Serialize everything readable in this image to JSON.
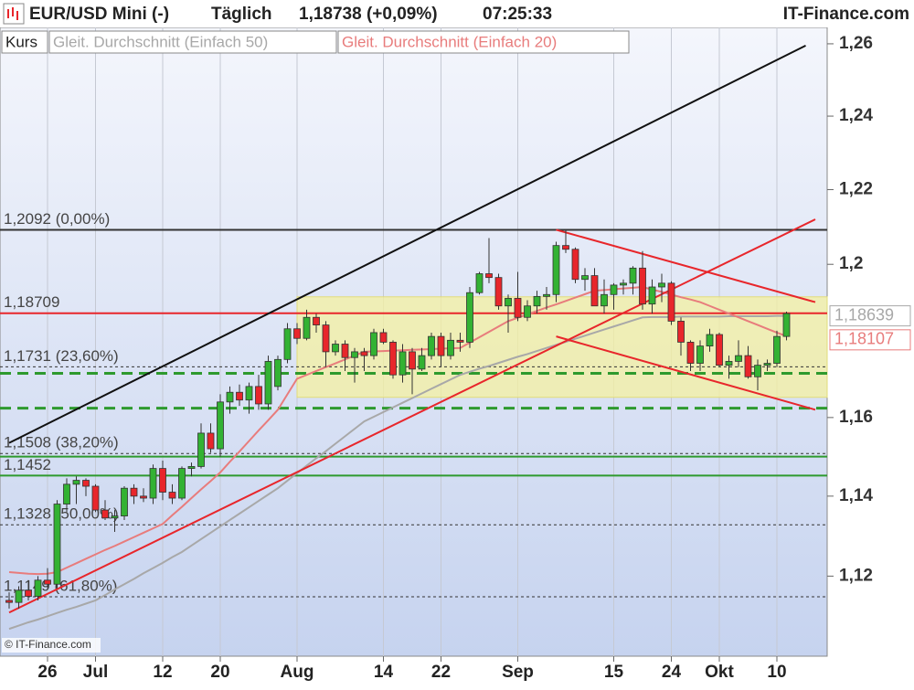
{
  "chart_data": {
    "type": "candlestick",
    "title": "EUR/USD Mini (-)",
    "interval": "Täglich",
    "last_price": "1,18738 (+0,09%)",
    "time": "07:25:33",
    "source": "IT-Finance.com",
    "copyright": "© IT-Finance.com",
    "price_name": "Kurs",
    "up_color": "#33b233",
    "down_color": "#e8262b",
    "log_scale": true,
    "ylim": [
      1.101,
      1.2633
    ],
    "yticks": [
      {
        "value": 1.12,
        "label": "1,12"
      },
      {
        "value": 1.14,
        "label": "1,14"
      },
      {
        "value": 1.16,
        "label": "1,16"
      },
      {
        "value": 1.2,
        "label": "1,2"
      },
      {
        "value": 1.22,
        "label": "1,22"
      },
      {
        "value": 1.24,
        "label": "1,24"
      },
      {
        "value": 1.26,
        "label": "1,26"
      }
    ],
    "categories": [
      null,
      null,
      null,
      null,
      "26",
      null,
      null,
      null,
      null,
      "Jul",
      null,
      null,
      null,
      null,
      null,
      null,
      "12",
      null,
      null,
      null,
      null,
      null,
      "20",
      null,
      null,
      null,
      null,
      null,
      null,
      null,
      "Aug",
      null,
      null,
      null,
      null,
      null,
      null,
      null,
      null,
      "14",
      null,
      null,
      null,
      null,
      null,
      "22",
      null,
      null,
      null,
      null,
      null,
      null,
      null,
      "Sep",
      null,
      null,
      null,
      null,
      null,
      null,
      null,
      null,
      null,
      "15",
      null,
      null,
      null,
      null,
      null,
      "24",
      null,
      null,
      null,
      null,
      "Okt",
      null,
      null,
      null,
      null,
      null,
      "10",
      null
    ],
    "open": [
      1.114,
      1.1135,
      1.1165,
      1.115,
      1.119,
      1.118,
      1.138,
      1.143,
      1.144,
      1.1425,
      1.1365,
      1.1345,
      1.135,
      1.142,
      1.14,
      1.1395,
      1.147,
      1.141,
      1.1395,
      1.147,
      1.1475,
      1.156,
      1.152,
      1.164,
      1.1665,
      1.1645,
      1.168,
      1.1635,
      1.168,
      1.175,
      1.183,
      1.1805,
      1.186,
      1.184,
      1.177,
      1.179,
      1.1755,
      1.177,
      1.176,
      1.182,
      1.1795,
      1.171,
      1.177,
      1.1725,
      1.176,
      1.181,
      1.176,
      1.18,
      1.1795,
      1.1925,
      1.1975,
      1.1965,
      1.189,
      1.191,
      1.186,
      1.189,
      1.1915,
      1.192,
      1.205,
      1.204,
      1.196,
      1.197,
      1.189,
      1.192,
      1.1945,
      1.195,
      1.199,
      1.1895,
      1.194,
      1.195,
      1.185,
      1.1795,
      1.174,
      1.1785,
      1.1815,
      1.1735,
      1.1745,
      1.176,
      1.1705,
      1.1735,
      1.174,
      1.181
    ],
    "high": [
      1.116,
      1.1175,
      1.119,
      1.12,
      1.122,
      1.139,
      1.1445,
      1.145,
      1.1445,
      1.143,
      1.139,
      1.1365,
      1.1425,
      1.143,
      1.142,
      1.148,
      1.149,
      1.143,
      1.1475,
      1.1485,
      1.1585,
      1.1585,
      1.166,
      1.168,
      1.1685,
      1.169,
      1.171,
      1.176,
      1.176,
      1.1845,
      1.1845,
      1.188,
      1.187,
      1.185,
      1.18,
      1.18,
      1.178,
      1.178,
      1.183,
      1.183,
      1.18,
      1.179,
      1.178,
      1.178,
      1.182,
      1.182,
      1.182,
      1.182,
      1.194,
      1.198,
      1.207,
      1.1975,
      1.192,
      1.198,
      1.1905,
      1.193,
      1.194,
      1.206,
      1.2092,
      1.2045,
      1.199,
      1.199,
      1.196,
      1.195,
      1.196,
      1.1995,
      1.2035,
      1.196,
      1.1975,
      1.1955,
      1.186,
      1.18,
      1.18,
      1.183,
      1.182,
      1.176,
      1.18,
      1.1785,
      1.175,
      1.175,
      1.1825,
      1.1875
    ],
    "low": [
      1.112,
      1.112,
      1.114,
      1.114,
      1.117,
      1.117,
      1.136,
      1.138,
      1.14,
      1.136,
      1.134,
      1.131,
      1.134,
      1.138,
      1.1385,
      1.138,
      1.139,
      1.138,
      1.139,
      1.145,
      1.147,
      1.151,
      1.15,
      1.161,
      1.163,
      1.161,
      1.162,
      1.162,
      1.167,
      1.174,
      1.179,
      1.18,
      1.182,
      1.173,
      1.176,
      1.172,
      1.169,
      1.172,
      1.175,
      1.179,
      1.17,
      1.169,
      1.166,
      1.172,
      1.175,
      1.173,
      1.175,
      1.177,
      1.178,
      1.192,
      1.195,
      1.188,
      1.182,
      1.185,
      1.185,
      1.187,
      1.188,
      1.19,
      1.203,
      1.195,
      1.193,
      1.189,
      1.187,
      1.188,
      1.192,
      1.192,
      1.188,
      1.187,
      1.19,
      1.184,
      1.176,
      1.172,
      1.172,
      1.177,
      1.173,
      1.17,
      1.173,
      1.17,
      1.167,
      1.172,
      1.173,
      1.18
    ],
    "close": [
      1.1135,
      1.1165,
      1.115,
      1.119,
      1.118,
      1.138,
      1.143,
      1.144,
      1.1425,
      1.1365,
      1.1345,
      1.135,
      1.142,
      1.14,
      1.1395,
      1.147,
      1.141,
      1.1395,
      1.147,
      1.1475,
      1.156,
      1.152,
      1.164,
      1.1665,
      1.1645,
      1.168,
      1.1635,
      1.1745,
      1.175,
      1.183,
      1.1805,
      1.186,
      1.184,
      1.177,
      1.179,
      1.1755,
      1.177,
      1.176,
      1.182,
      1.1795,
      1.171,
      1.177,
      1.1725,
      1.176,
      1.181,
      1.176,
      1.18,
      1.1795,
      1.1925,
      1.1975,
      1.1965,
      1.189,
      1.191,
      1.186,
      1.189,
      1.1915,
      1.192,
      1.205,
      1.204,
      1.196,
      1.197,
      1.189,
      1.192,
      1.1945,
      1.195,
      1.199,
      1.1895,
      1.194,
      1.195,
      1.185,
      1.1795,
      1.174,
      1.1785,
      1.1815,
      1.1735,
      1.1745,
      1.176,
      1.1705,
      1.1735,
      1.174,
      1.181,
      1.187
    ],
    "series": [
      {
        "name": "Gleit. Durchschnitt (Einfach 50)",
        "color": "#a8a8a8",
        "end_label": "1,18639",
        "values": [
          1.107,
          1.1078,
          1.1086,
          1.1093,
          1.1101,
          1.1109,
          1.1117,
          1.1124,
          1.1132,
          1.114,
          1.1153,
          1.1167,
          1.118,
          1.1193,
          1.1207,
          1.122,
          1.1233,
          1.1247,
          1.126,
          1.1276,
          1.1292,
          1.1308,
          1.1324,
          1.134,
          1.1356,
          1.1372,
          1.1388,
          1.1404,
          1.142,
          1.1439,
          1.1458,
          1.1477,
          1.1496,
          1.1514,
          1.1533,
          1.1552,
          1.1571,
          1.159,
          1.1602,
          1.1614,
          1.1626,
          1.1638,
          1.165,
          1.1662,
          1.1674,
          1.1686,
          1.1698,
          1.171,
          1.1718,
          1.1726,
          1.1733,
          1.1741,
          1.1749,
          1.1757,
          1.1764,
          1.1772,
          1.178,
          1.1788,
          1.1796,
          1.1804,
          1.1812,
          1.182,
          1.1828,
          1.1836,
          1.1844,
          1.1852,
          1.186,
          1.1861,
          1.1861,
          1.1861,
          1.1862,
          1.1862,
          1.1862,
          1.1862,
          1.1862,
          1.1863,
          1.1863,
          1.1863,
          1.1863,
          1.1863,
          1.1864,
          1.18639
        ]
      },
      {
        "name": "Gleit. Durchschnitt (Einfach 20)",
        "color": "#e87c7c",
        "end_label": "1,18107",
        "values": [
          1.121,
          1.1208,
          1.1206,
          1.1205,
          1.1206,
          1.121,
          1.1221,
          1.1232,
          1.1243,
          1.1254,
          1.1265,
          1.1275,
          1.1286,
          1.1297,
          1.1308,
          1.1319,
          1.133,
          1.1352,
          1.1373,
          1.1395,
          1.1417,
          1.1438,
          1.146,
          1.1487,
          1.1513,
          1.154,
          1.1567,
          1.1593,
          1.162,
          1.166,
          1.17,
          1.171,
          1.172,
          1.173,
          1.174,
          1.175,
          1.176,
          1.177,
          1.1771,
          1.1772,
          1.1773,
          1.1774,
          1.1775,
          1.1776,
          1.1777,
          1.1778,
          1.1779,
          1.178,
          1.1794,
          1.1808,
          1.1822,
          1.1836,
          1.185,
          1.1859,
          1.1868,
          1.1877,
          1.1886,
          1.1894,
          1.1903,
          1.1912,
          1.1921,
          1.193,
          1.1932,
          1.1934,
          1.1936,
          1.1938,
          1.194,
          1.1933,
          1.1927,
          1.192,
          1.1913,
          1.1907,
          1.19,
          1.189,
          1.188,
          1.187,
          1.186,
          1.185,
          1.184,
          1.183,
          1.182,
          1.18107
        ]
      }
    ],
    "zone": {
      "from_index": 30,
      "top": 1.1914,
      "bottom": 1.1652,
      "color": "#f4f0a0"
    },
    "levels": [
      {
        "value": 1.2092,
        "label": "1,2092 (0,00%)",
        "color": "#333333",
        "style": "solid"
      },
      {
        "value": 1.18709,
        "label": "1,18709",
        "color": "#e8262b",
        "style": "solid"
      },
      {
        "value": 1.1731,
        "label": "1,1731 (23,60%)",
        "color": "#333333",
        "style": "dotted"
      },
      {
        "value": 1.1714,
        "color": "#2e9a2e",
        "style": "dashed"
      },
      {
        "value": 1.1624,
        "color": "#2e9a2e",
        "style": "dashed"
      },
      {
        "value": 1.1508,
        "label": "1,1508 (38,20%)",
        "color": "#333333",
        "style": "dotted"
      },
      {
        "value": 1.15,
        "color": "#2e9a2e",
        "style": "solid"
      },
      {
        "value": 1.1452,
        "label": "1,1452",
        "color": "#2e9a2e",
        "style": "solid"
      },
      {
        "value": 1.1328,
        "label": "1,1328 (50,00%)",
        "color": "#333333",
        "style": "dotted"
      },
      {
        "value": 1.1149,
        "label": "1,1149 (61,80%)",
        "color": "#333333",
        "style": "dotted"
      }
    ],
    "trendlines": [
      {
        "from": [
          0,
          1.1535
        ],
        "to": [
          83,
          1.2595
        ],
        "color": "#111111"
      },
      {
        "from": [
          0,
          1.111
        ],
        "to": [
          84,
          1.212
        ],
        "color": "#e8262b"
      },
      {
        "from": [
          57,
          1.2092
        ],
        "to": [
          84,
          1.19
        ],
        "color": "#e8262b"
      },
      {
        "from": [
          57,
          1.181
        ],
        "to": [
          84,
          1.162
        ],
        "color": "#e8262b"
      }
    ]
  }
}
